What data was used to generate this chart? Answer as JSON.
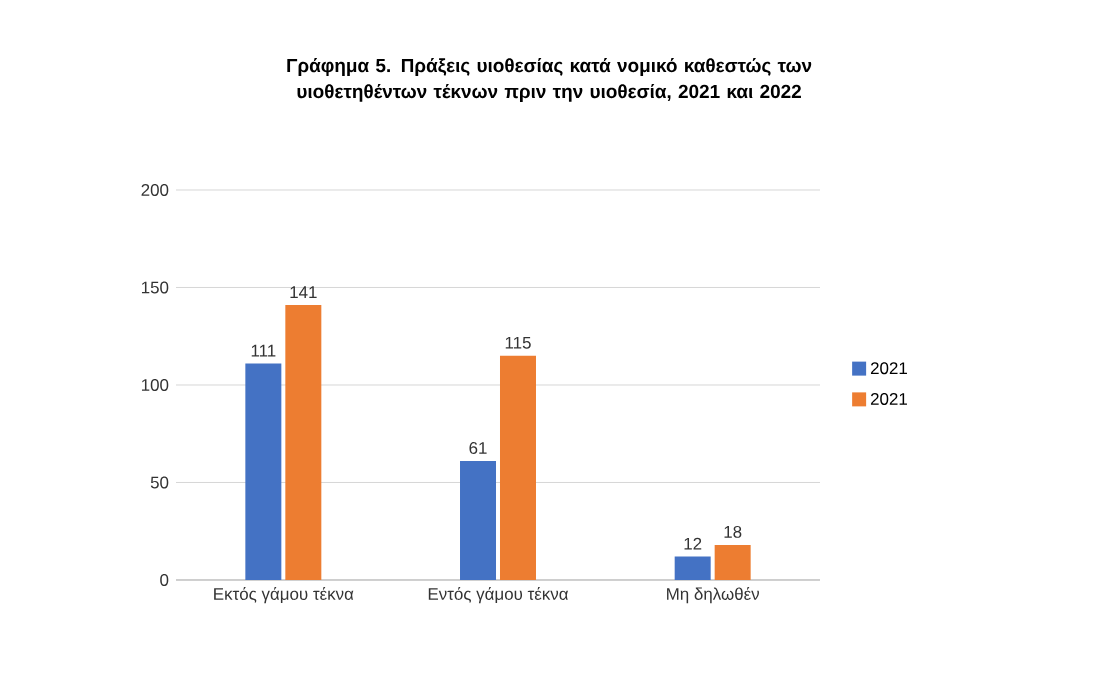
{
  "chart_data": {
    "type": "bar",
    "title": "Γράφημα 5. Πράξεις υιοθεσίας κατά νομικό καθεστώς των υιοθετηθέντων τέκνων πριν την υιοθεσία, 2021 και 2022",
    "categories": [
      "Εκτός γάμου τέκνα",
      "Εντός γάμου τέκνα",
      "Μη δηλωθέν"
    ],
    "series": [
      {
        "name": "2021",
        "color": "#4472c4",
        "values": [
          111,
          61,
          12
        ]
      },
      {
        "name": "2021",
        "color": "#ed7d31",
        "values": [
          141,
          115,
          18
        ]
      }
    ],
    "ylim": [
      0,
      200
    ],
    "yticks": [
      0,
      50,
      100,
      150,
      200
    ],
    "grid": "y",
    "legend": "right",
    "data_labels": true
  }
}
